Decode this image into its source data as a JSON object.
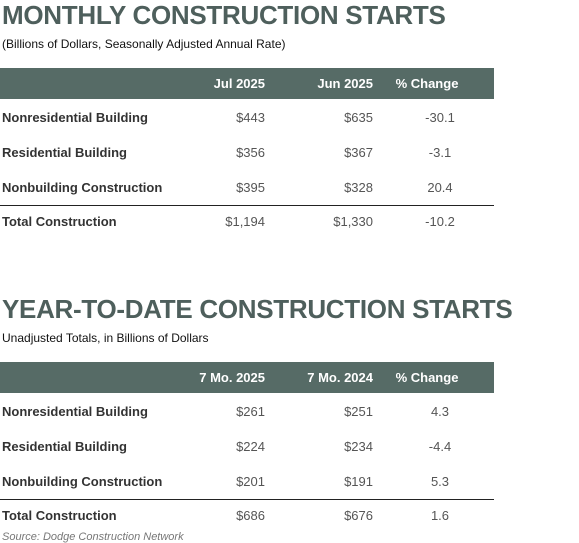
{
  "sections": [
    {
      "title": "MONTHLY CONSTRUCTION STARTS",
      "subtitle": "(Billions of Dollars, Seasonally Adjusted Annual Rate)",
      "columns": [
        "Jul 2025",
        "Jun 2025",
        "% Change"
      ],
      "rows": [
        [
          "Nonresidential Building",
          "$443",
          "$635",
          "-30.1"
        ],
        [
          "Residential Building",
          "$356",
          "$367",
          "-3.1"
        ],
        [
          "Nonbuilding Construction",
          "$395",
          "$328",
          "20.4"
        ]
      ],
      "total": [
        "Total Construction",
        "$1,194",
        "$1,330",
        "-10.2"
      ]
    },
    {
      "title": "YEAR-TO-DATE CONSTRUCTION STARTS",
      "subtitle": "Unadjusted Totals, in Billions of Dollars",
      "columns": [
        "7 Mo. 2025",
        "7 Mo. 2024",
        "% Change"
      ],
      "rows": [
        [
          "Nonresidential Building",
          "$261",
          "$251",
          "4.3"
        ],
        [
          "Residential Building",
          "$224",
          "$234",
          "-4.4"
        ],
        [
          "Nonbuilding Construction",
          "$201",
          "$191",
          "5.3"
        ]
      ],
      "total": [
        "Total Construction",
        "$686",
        "$676",
        "1.6"
      ]
    }
  ],
  "source": "Source: Dodge Construction Network"
}
